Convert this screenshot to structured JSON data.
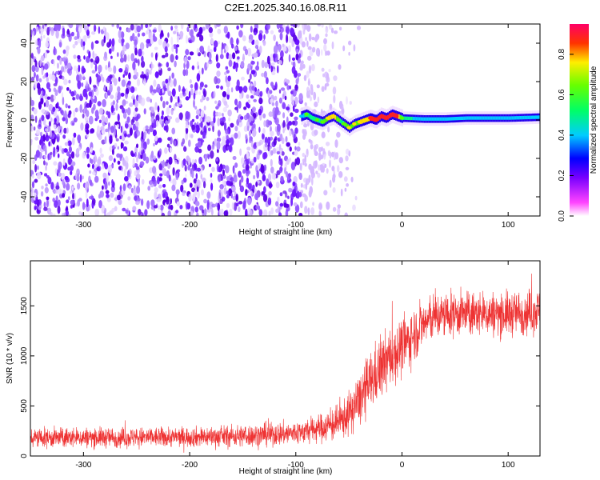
{
  "figure_title": "C2E1.2025.340.16.08.R11",
  "chart_data": [
    {
      "type": "heatmap",
      "title": "",
      "xlabel": "Height of straight line (km)",
      "ylabel": "Frequency (Hz)",
      "xlim": [
        -350,
        130
      ],
      "ylim": [
        -50,
        50
      ],
      "xticks": [
        -300,
        -200,
        -100,
        0,
        100
      ],
      "yticks": [
        -40,
        -20,
        0,
        20,
        40
      ],
      "colorbar": {
        "label": "Normalized spectral amplitude",
        "range": [
          0,
          0.95
        ],
        "ticks": [
          0.0,
          0.2,
          0.4,
          0.6,
          0.8
        ],
        "colormap": [
          "#ffffff",
          "#ff00ff",
          "#0000ff",
          "#00ffff",
          "#00ff00",
          "#ffff00",
          "#ff0000"
        ]
      },
      "noise_region_x": [
        -350,
        -50
      ],
      "signal_track": {
        "x": [
          -95,
          -90,
          -85,
          -80,
          -75,
          -70,
          -65,
          -60,
          -55,
          -50,
          -45,
          -40,
          -35,
          -30,
          -25,
          -20,
          -15,
          -10,
          -5,
          0,
          20,
          40,
          60,
          80,
          100,
          130
        ],
        "frequency": [
          2,
          3,
          1,
          0,
          -1,
          1,
          2,
          0,
          -2,
          -4,
          -2,
          -1,
          0,
          1,
          0,
          2,
          1,
          3,
          2,
          1,
          0.5,
          0.5,
          1,
          1,
          1,
          1.5
        ],
        "amplitude": [
          0.4,
          0.6,
          0.5,
          0.55,
          0.6,
          0.7,
          0.75,
          0.6,
          0.6,
          0.7,
          0.65,
          0.7,
          0.75,
          0.85,
          0.9,
          0.85,
          0.9,
          0.9,
          0.85,
          0.55,
          0.45,
          0.5,
          0.5,
          0.45,
          0.45,
          0.45
        ]
      }
    },
    {
      "type": "line",
      "title": "",
      "xlabel": "Height of straight line (km)",
      "ylabel": "SNR (10 * v/v)",
      "xlim": [
        -350,
        130
      ],
      "ylim": [
        0,
        1950
      ],
      "xticks": [
        -300,
        -200,
        -100,
        0,
        100
      ],
      "yticks": [
        0,
        500,
        1000,
        1500
      ],
      "color": "#ee3333",
      "series": [
        {
          "x": [
            -350,
            -300,
            -250,
            -200,
            -150,
            -100,
            -80,
            -60,
            -50,
            -40,
            -30,
            -20,
            -10,
            0,
            10,
            20,
            30,
            50,
            80,
            100,
            130
          ],
          "mean": [
            180,
            185,
            185,
            190,
            200,
            230,
            270,
            330,
            420,
            560,
            740,
            880,
            1000,
            1090,
            1200,
            1320,
            1390,
            1420,
            1420,
            1420,
            1450
          ],
          "spread": [
            90,
            90,
            90,
            90,
            100,
            110,
            120,
            160,
            190,
            240,
            270,
            280,
            280,
            260,
            240,
            220,
            210,
            200,
            200,
            200,
            200
          ]
        }
      ]
    }
  ]
}
